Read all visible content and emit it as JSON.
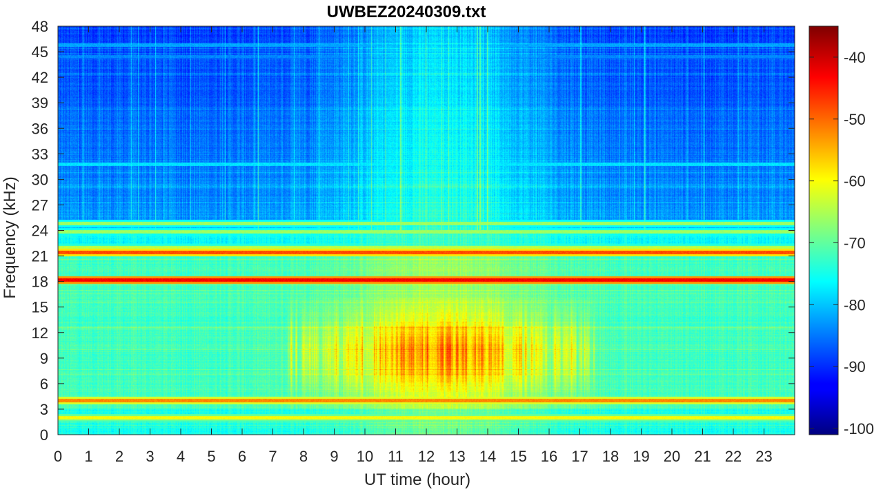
{
  "chart_data": {
    "type": "heatmap",
    "title": "UWBEZ20240309.txt",
    "xlabel": "UT time (hour)",
    "ylabel": "Frequency (kHz)",
    "xlim": [
      0,
      24
    ],
    "ylim": [
      0,
      48
    ],
    "x_ticks": [
      0,
      1,
      2,
      3,
      4,
      5,
      6,
      7,
      8,
      9,
      10,
      11,
      12,
      13,
      14,
      15,
      16,
      17,
      18,
      19,
      20,
      21,
      22,
      23
    ],
    "y_ticks": [
      0,
      3,
      6,
      9,
      12,
      15,
      18,
      21,
      24,
      27,
      30,
      33,
      36,
      39,
      42,
      45,
      48
    ],
    "colorbar": {
      "colormap": "jet",
      "range": [
        -101,
        -35
      ],
      "ticks": [
        -100,
        -90,
        -80,
        -70,
        -60,
        -50,
        -40
      ]
    },
    "bands_khz": [
      {
        "freq": 18.2,
        "level": -43
      },
      {
        "freq": 21.4,
        "level": -48
      },
      {
        "freq": 4.0,
        "level": -52
      },
      {
        "freq": 24.8,
        "level": -66
      },
      {
        "freq": 23.8,
        "level": -66
      },
      {
        "freq": 22.0,
        "level": -64
      },
      {
        "freq": 2.0,
        "level": -60
      },
      {
        "freq": 31.8,
        "level": -78
      },
      {
        "freq": 45.8,
        "level": -82
      },
      {
        "freq": 44.4,
        "level": -84
      }
    ],
    "activity_window_hours": [
      7.5,
      17.5
    ],
    "grid": false
  }
}
